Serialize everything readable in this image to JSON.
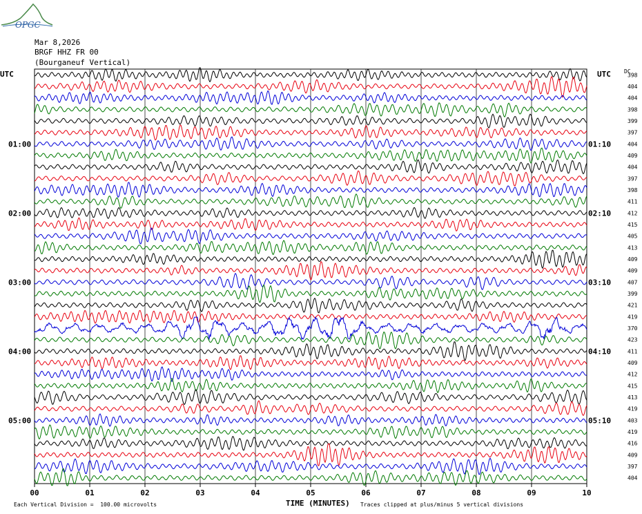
{
  "header": {
    "logo_text": "OPGC",
    "date": "Mar 8,2026",
    "station": "BRGF HHZ FR 00",
    "station_name": "(Bourganeuf Vertical)"
  },
  "footer": {
    "scale_note": "Each Vertical Division =  100.00 microvolts",
    "clip_note": "Traces clipped at plus/minus 5 vertical divisions"
  },
  "chart_data": {
    "type": "line",
    "title": "",
    "xlabel": "TIME (MINUTES)",
    "x_ticks": [
      "00",
      "01",
      "02",
      "03",
      "04",
      "05",
      "06",
      "07",
      "08",
      "09",
      "10"
    ],
    "xlim": [
      0,
      10
    ],
    "left_axis_title": "UTC",
    "right_axis_title": "UTC",
    "dc_label": "DC",
    "left_hour_labels": [
      {
        "row": 6,
        "label": "01:00"
      },
      {
        "row": 12,
        "label": "02:00"
      },
      {
        "row": 18,
        "label": "03:00"
      },
      {
        "row": 24,
        "label": "04:00"
      },
      {
        "row": 30,
        "label": "05:00"
      }
    ],
    "right_hour_labels": [
      {
        "row": 6,
        "label": "01:10"
      },
      {
        "row": 12,
        "label": "02:10"
      },
      {
        "row": 18,
        "label": "03:10"
      },
      {
        "row": 24,
        "label": "04:10"
      },
      {
        "row": 30,
        "label": "05:10"
      }
    ],
    "dc_offsets": [
      "398",
      "404",
      "404",
      "398",
      "399",
      "397",
      "404",
      "409",
      "404",
      "397",
      "398",
      "411",
      "412",
      "415",
      "405",
      "413",
      "409",
      "409",
      "407",
      "399",
      "421",
      "419",
      "370",
      "423",
      "411",
      "409",
      "412",
      "415",
      "413",
      "419",
      "403",
      "419",
      "416",
      "409",
      "397",
      "404"
    ],
    "trace_colors": [
      "#000000",
      "#e8000f",
      "#0000d8",
      "#007a00"
    ],
    "grid": true,
    "clip_divisions": 5,
    "scale_microvolts_per_division": 100.0,
    "noisy_row": 22
  }
}
